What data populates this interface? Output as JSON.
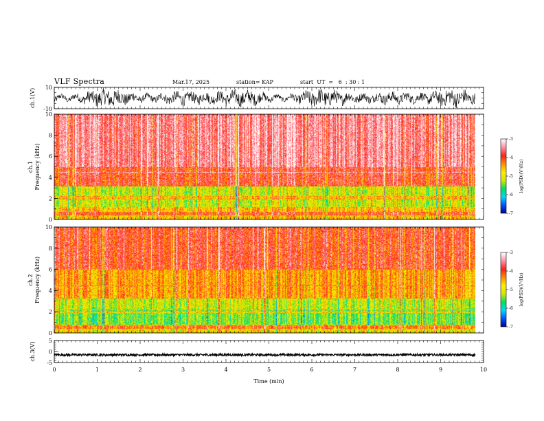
{
  "header": {
    "title": "VLF Spectra",
    "date": "Mar.17, 2025",
    "station": "station= KAP",
    "start": "start  UT  =   6  : 30 : 1"
  },
  "colors": {
    "spectrogram_scale": [
      "#00008c",
      "#0050ff",
      "#00d8ff",
      "#00e060",
      "#d0e800",
      "#ffee00",
      "#ff9000",
      "#ff2020",
      "#ff90a0",
      "#ffffff"
    ],
    "line": "#000000"
  },
  "chart_data": [
    {
      "type": "line",
      "name": "ch1-waveform",
      "ylabel": "ch.1(V)",
      "ylim": [
        -10,
        10
      ],
      "yticks": [
        "10",
        "-10"
      ],
      "xlim": [
        0,
        10
      ],
      "description_level": "noisy broadband signal, roughly between -9 and +9 V"
    },
    {
      "type": "heatmap",
      "name": "ch1-spectrogram",
      "title": "ch.1 Frequency (kHz)",
      "ylabel": "ch.1",
      "ylabel2": "Frequency  (kHz)",
      "ylim": [
        0,
        10
      ],
      "yticks": [
        "0",
        "2",
        "4",
        "6",
        "8",
        "10"
      ],
      "xlim": [
        0,
        9.8
      ],
      "colorbar": {
        "label": "log(PSD)(V²/Hz)",
        "range": [
          -7,
          -3
        ],
        "ticks": [
          "-3",
          "-4",
          "-5",
          "-6",
          "-7"
        ]
      },
      "bands": [
        {
          "from_khz": 0,
          "to_khz": 1.2,
          "level": -4.6
        },
        {
          "from_khz": 1.2,
          "to_khz": 3.2,
          "level": -5.1
        },
        {
          "from_khz": 3.2,
          "to_khz": 5.0,
          "level": -3.9
        },
        {
          "from_khz": 5.0,
          "to_khz": 10.0,
          "level": -3.5
        }
      ]
    },
    {
      "type": "heatmap",
      "name": "ch2-spectrogram",
      "ylabel": "ch.2",
      "ylabel2": "Frequency  (kHz)",
      "ylim": [
        0,
        10
      ],
      "yticks": [
        "0",
        "2",
        "4",
        "6",
        "8",
        "10"
      ],
      "xlim": [
        0,
        9.8
      ],
      "colorbar": {
        "label": "log(PSD)(V²/Hz)",
        "range": [
          -7,
          -3
        ],
        "ticks": [
          "-3",
          "-4",
          "-5",
          "-6",
          "-7"
        ]
      },
      "bands": [
        {
          "from_khz": 0,
          "to_khz": 0.8,
          "level": -4.8
        },
        {
          "from_khz": 0.8,
          "to_khz": 2.2,
          "level": -5.4
        },
        {
          "from_khz": 2.2,
          "to_khz": 3.3,
          "level": -5.1
        },
        {
          "from_khz": 3.3,
          "to_khz": 6.0,
          "level": -4.4
        },
        {
          "from_khz": 6.0,
          "to_khz": 10.0,
          "level": -3.9
        }
      ]
    },
    {
      "type": "line",
      "name": "ch3-waveform",
      "ylabel": "ch.3(V)",
      "ylim": [
        -5,
        5
      ],
      "yticks": [
        "5",
        "0",
        "-5"
      ],
      "xlim": [
        0,
        10
      ],
      "level_center": -1.5,
      "level_spread": 0.5
    }
  ],
  "xaxis": {
    "label": "Time  (min)",
    "range": [
      0,
      10
    ],
    "ticks": [
      "0",
      "1",
      "2",
      "3",
      "4",
      "5",
      "6",
      "7",
      "8",
      "9",
      "10"
    ]
  }
}
